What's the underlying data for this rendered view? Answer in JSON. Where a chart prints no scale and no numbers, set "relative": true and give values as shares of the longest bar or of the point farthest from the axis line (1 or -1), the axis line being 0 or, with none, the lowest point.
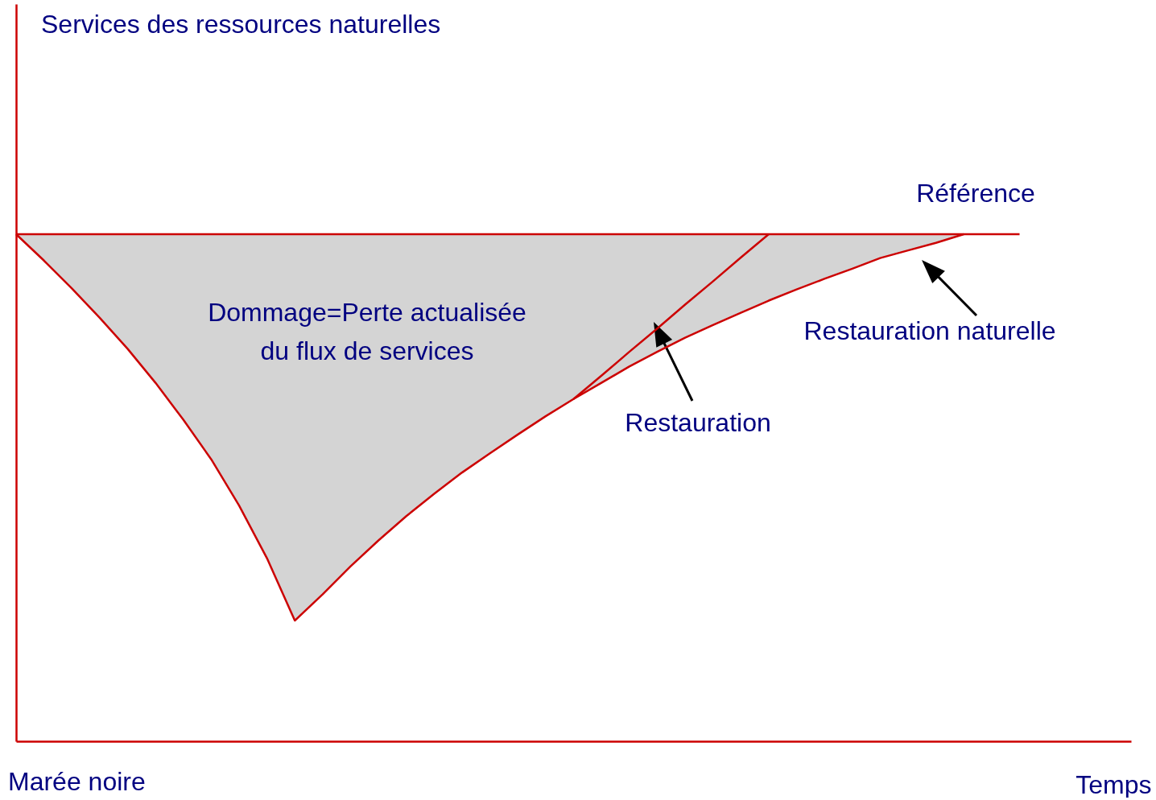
{
  "chart_data": {
    "type": "line",
    "relative": true,
    "marker": "none",
    "line_style": "solid",
    "xlabel": "Temps",
    "categories": [
      null,
      null,
      null,
      null,
      null,
      null,
      null,
      null,
      null,
      null,
      null,
      null,
      null,
      null,
      null,
      null,
      null,
      null,
      null,
      null,
      null,
      null,
      null,
      null,
      null,
      null,
      null,
      null,
      null,
      null,
      null,
      null,
      null,
      null,
      null,
      null,
      null,
      null,
      null,
      null,
      null
    ],
    "series": [
      {
        "color": "#cc0000",
        "values": [
          1,
          1,
          1,
          1,
          1,
          1,
          1,
          1,
          1,
          1,
          1,
          1,
          1,
          1,
          1,
          1,
          1,
          1,
          1,
          1,
          1,
          1,
          1,
          1,
          1,
          1,
          1,
          1,
          1,
          1,
          1,
          1,
          1,
          1,
          1,
          1,
          1,
          null,
          null,
          null,
          null
        ]
      },
      {
        "color": "#cc0000",
        "values": [
          1,
          0.948,
          0.893,
          0.835,
          0.774,
          0.707,
          0.634,
          0.556,
          0.465,
          0.361,
          0.238,
          0.29,
          0.345,
          0.396,
          0.444,
          0.488,
          0.53,
          0.568,
          0.605,
          0.641,
          0.675,
          0.707,
          0.739,
          0.768,
          0.796,
          0.821,
          0.845,
          0.869,
          0.891,
          0.912,
          0.932,
          0.953,
          0.968,
          0.983,
          1,
          null,
          null,
          null,
          null,
          null,
          null
        ],
        "lower": [
          1,
          0.948,
          0.893,
          0.835,
          0.774,
          0.707,
          0.634,
          0.556,
          0.465,
          0.361,
          0.238,
          0.29,
          0.345,
          0.396,
          0.444,
          0.488,
          0.53,
          0.568,
          0.605,
          0.641,
          0.675,
          0.707,
          0.739,
          0.768,
          0.796,
          0.821,
          0.845,
          0.869,
          0.891,
          0.912,
          0.932,
          0.953,
          0.968,
          0.983,
          1,
          null,
          null,
          null,
          null,
          null,
          null
        ],
        "upper": [
          1,
          1,
          1,
          1,
          1,
          1,
          1,
          1,
          1,
          1,
          1,
          1,
          1,
          1,
          1,
          1,
          1,
          1,
          1,
          1,
          1,
          1,
          1,
          1,
          1,
          1,
          1,
          1,
          1,
          1,
          1,
          1,
          1,
          1,
          1,
          null,
          null,
          null,
          null,
          null,
          null
        ]
      },
      {
        "color": "#cc0000",
        "values": [
          null,
          null,
          null,
          null,
          null,
          null,
          null,
          null,
          null,
          null,
          null,
          null,
          null,
          null,
          null,
          null,
          null,
          null,
          null,
          null,
          0.675,
          0.721,
          0.768,
          0.814,
          0.861,
          0.907,
          0.954,
          1,
          null,
          null,
          null,
          null,
          null,
          null,
          null,
          null,
          null,
          null,
          null,
          null,
          null
        ]
      }
    ],
    "annotations": [
      "Dommage=Perte actualisée\ndu flux de services",
      "Référence",
      "Restauration naturelle",
      "Restauration",
      "Marée noire",
      "Services des ressources naturelles"
    ]
  }
}
